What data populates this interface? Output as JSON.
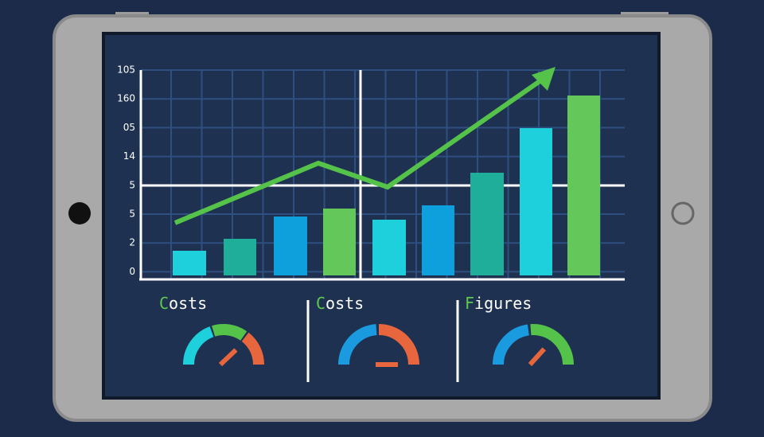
{
  "chart": {
    "y_axis_labels": [
      "105",
      "160",
      "05",
      "14",
      "5",
      "5",
      "2",
      "0"
    ]
  },
  "gauges": [
    {
      "title": "Costs"
    },
    {
      "title": "Costs"
    },
    {
      "title": "Figures"
    }
  ]
}
